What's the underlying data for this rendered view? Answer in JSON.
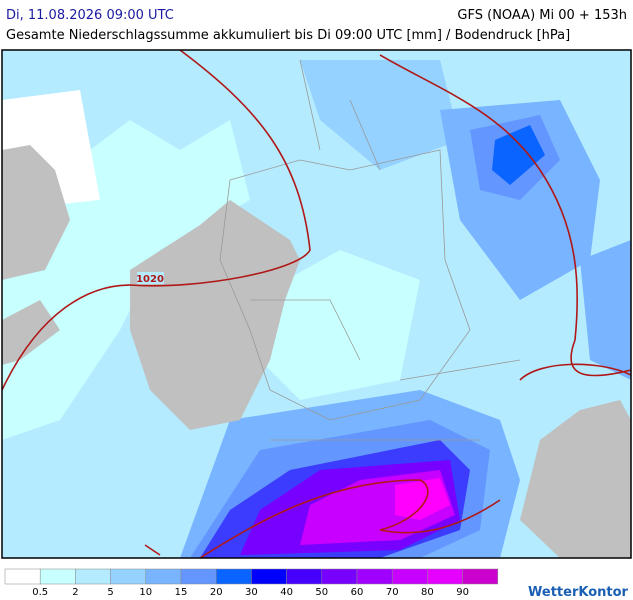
{
  "header": {
    "date": "Di, 11.08.2026 09:00 UTC",
    "model": "GFS (NOAA) Mi 00 + 153h",
    "subtitle": "Gesamte Niederschlagssumme akkumuliert bis Di 09:00 UTC [mm] / Bodendruck [hPa]"
  },
  "map": {
    "isobar_label": "1020"
  },
  "legend": {
    "colors": [
      "#ffffff",
      "#c8ffff",
      "#b4ebff",
      "#96d2ff",
      "#78b4ff",
      "#6496ff",
      "#0a64ff",
      "#0000ff",
      "#4600ff",
      "#7800ff",
      "#a000ff",
      "#c800ff",
      "#e600ff",
      "#cc00cc"
    ],
    "labels": [
      "0.5",
      "2",
      "5",
      "10",
      "15",
      "20",
      "30",
      "40",
      "50",
      "60",
      "70",
      "80",
      "90"
    ]
  },
  "brand": "WetterKontor"
}
